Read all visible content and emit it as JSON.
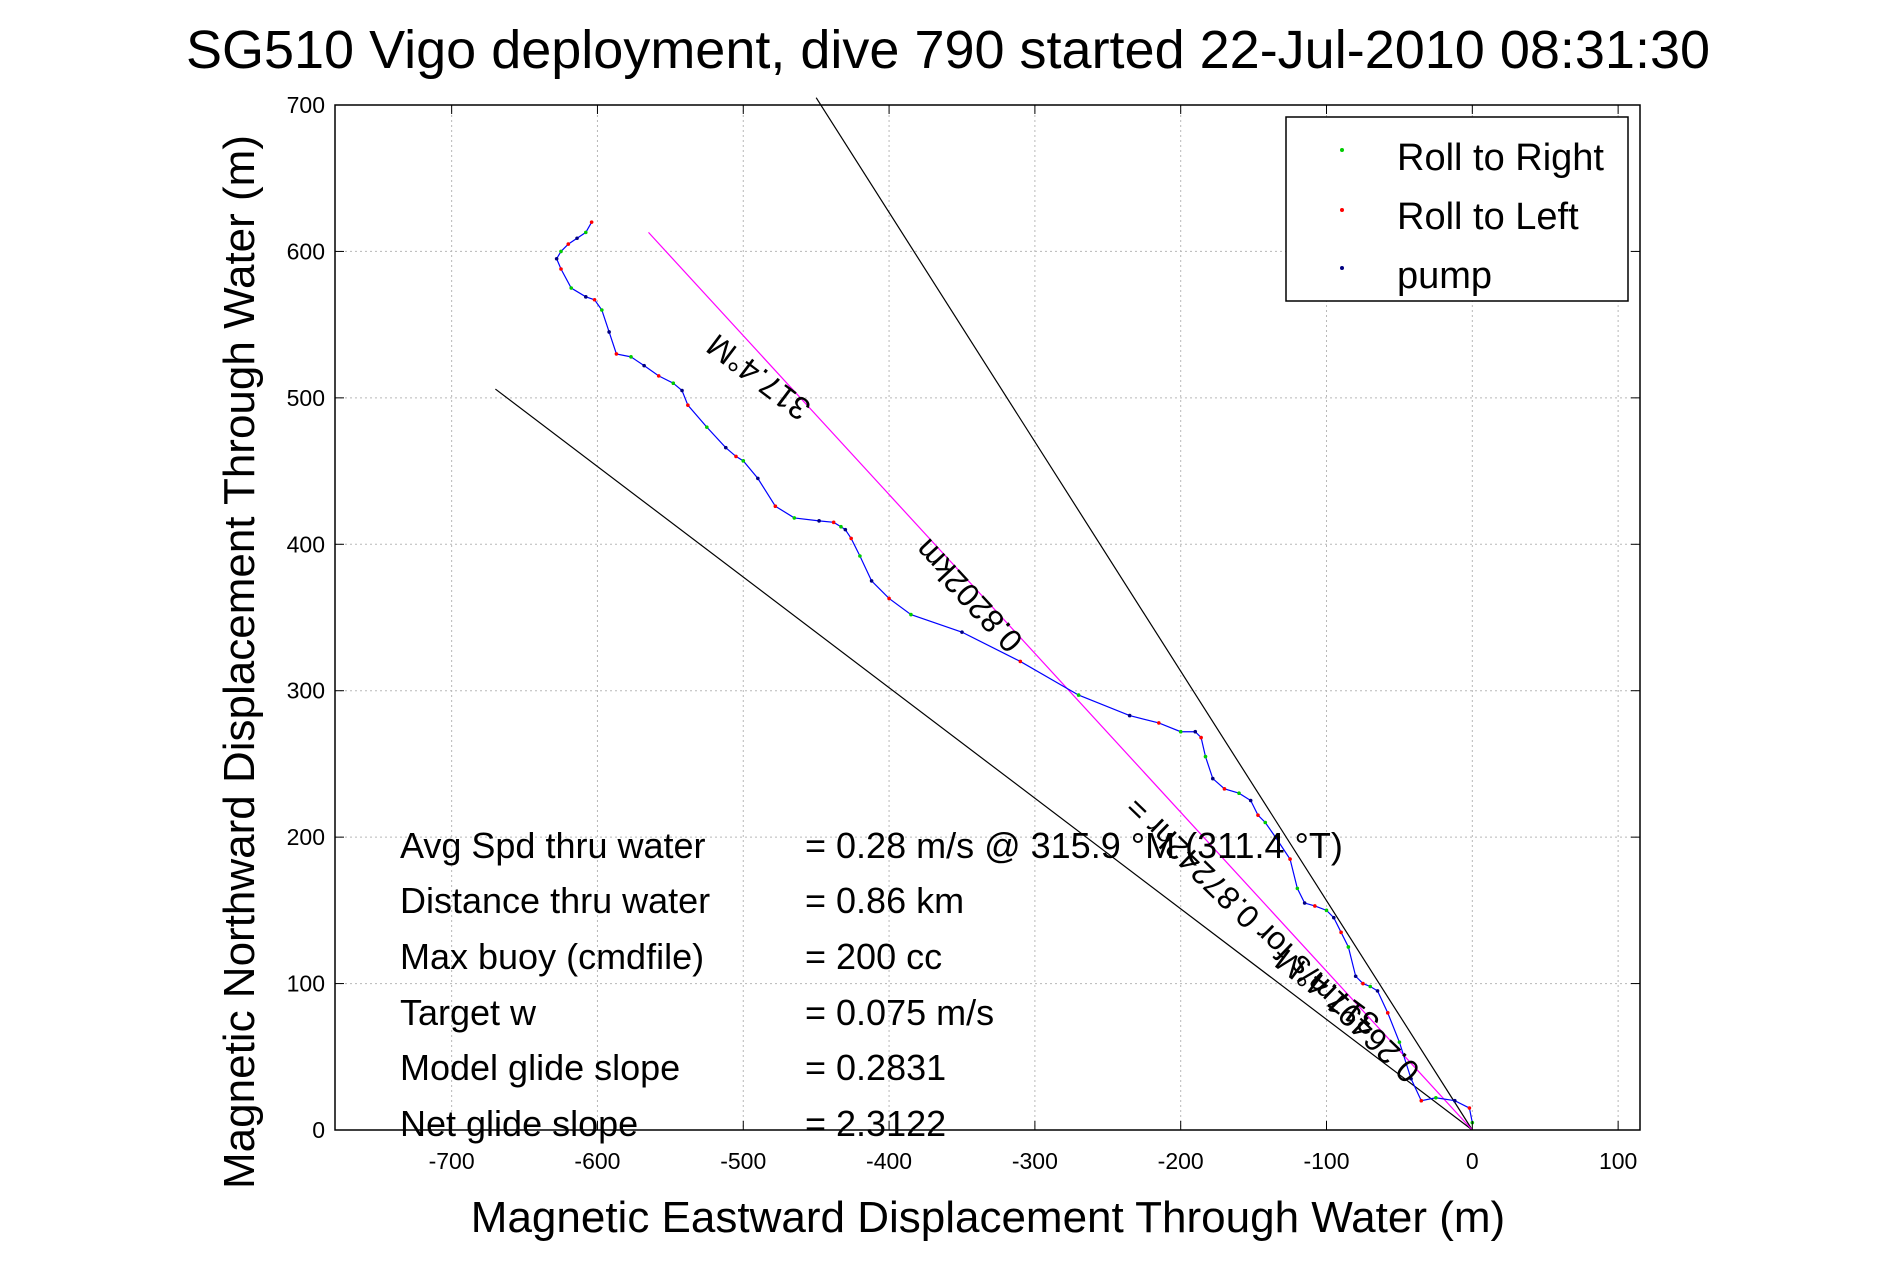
{
  "chart_data": {
    "type": "line",
    "title": "SG510 Vigo deployment, dive 790 started 22-Jul-2010 08:31:30",
    "xlabel": "Magnetic Eastward Displacement Through Water (m)",
    "ylabel": "Magnetic Northward Displacement Through Water (m)",
    "xlim": [
      -780,
      115
    ],
    "ylim": [
      0,
      700
    ],
    "xticks": [
      -700,
      -600,
      -500,
      -400,
      -300,
      -200,
      -100,
      0,
      100
    ],
    "yticks": [
      0,
      100,
      200,
      300,
      400,
      500,
      600,
      700
    ],
    "grid": true,
    "legend_position": "top-right",
    "legend": [
      {
        "label": "Roll to Right",
        "color": "#00cc00"
      },
      {
        "label": "Roll to Left",
        "color": "#ff0000"
      },
      {
        "label": "pump",
        "color": "#000080"
      }
    ],
    "track": {
      "color": "#0000ff",
      "x": [
        0,
        -2,
        -12,
        -25,
        -35,
        -42,
        -50,
        -58,
        -65,
        -70,
        -75,
        -80,
        -85,
        -90,
        -95,
        -100,
        -108,
        -115,
        -120,
        -125,
        -135,
        -142,
        -147,
        -152,
        -160,
        -170,
        -178,
        -183,
        -186,
        -190,
        -200,
        -215,
        -235,
        -270,
        -310,
        -350,
        -385,
        -400,
        -412,
        -420,
        -426,
        -430,
        -433,
        -438,
        -448,
        -465,
        -478,
        -490,
        -500,
        -505,
        -512,
        -525,
        -538,
        -542,
        -548,
        -558,
        -568,
        -577,
        -587,
        -592,
        -597,
        -602,
        -608,
        -618,
        -625,
        -628,
        -625,
        -620,
        -614,
        -608,
        -604
      ],
      "y": [
        5,
        15,
        20,
        22,
        20,
        35,
        60,
        80,
        95,
        98,
        100,
        105,
        125,
        135,
        145,
        150,
        153,
        155,
        165,
        185,
        200,
        210,
        215,
        225,
        230,
        233,
        240,
        255,
        268,
        272,
        272,
        278,
        283,
        297,
        320,
        340,
        352,
        363,
        375,
        392,
        404,
        410,
        412,
        415,
        416,
        418,
        426,
        445,
        457,
        460,
        466,
        480,
        495,
        505,
        510,
        515,
        522,
        528,
        530,
        545,
        560,
        567,
        569,
        575,
        588,
        595,
        600,
        605,
        609,
        613,
        620
      ]
    },
    "lines": [
      {
        "name": "",
        "color": "#000000",
        "x": [
          0,
          -670
        ],
        "y": [
          0,
          506
        ]
      },
      {
        "name": "",
        "color": "#000000",
        "x": [
          0,
          -450
        ],
        "y": [
          0,
          705
        ]
      },
      {
        "name": "",
        "color": "#ff00ff",
        "x": [
          0,
          -565
        ],
        "y": [
          0,
          613
        ]
      }
    ],
    "line_labels": [
      {
        "text": "317.4°M",
        "x": -485,
        "y": 520,
        "angle": 37
      },
      {
        "text": "0.8202km",
        "x": -340,
        "y": 370,
        "angle": 47
      },
      {
        "text": "0.26491m/s for 0.87242hr =",
        "x": -132,
        "y": 135,
        "angle": 44
      },
      {
        "text": "317.4°M",
        "x": -95,
        "y": 100,
        "angle": 37
      }
    ],
    "annotations": [
      {
        "label": "Avg Spd thru water",
        "value": "=  0.28 m/s @ 315.9 °M (311.4 °T)"
      },
      {
        "label": "Distance thru water",
        "value": "=  0.86 km"
      },
      {
        "label": "Max buoy (cmdfile)",
        "value": "= 200 cc"
      },
      {
        "label": "Target w",
        "value": "= 0.075 m/s"
      },
      {
        "label": "Model glide slope",
        "value": "= 0.2831"
      },
      {
        "label": "Net glide slope",
        "value": "= 2.3122"
      }
    ]
  }
}
